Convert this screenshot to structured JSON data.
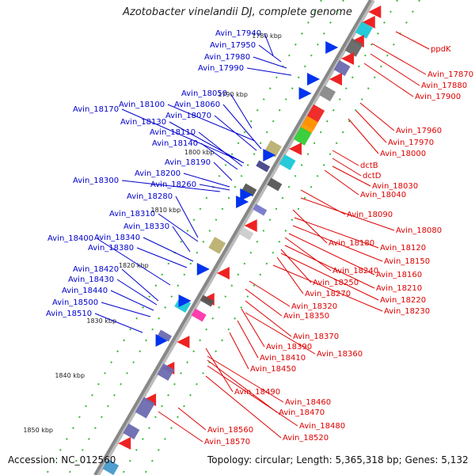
{
  "title": "Azotobacter vinelandii DJ, complete genome",
  "footer": {
    "accession": "Accession: NC_012560",
    "topology": "Topology: circular; Length: 5,365,318 bp; Genes: 5,132"
  },
  "colors": {
    "plus_strand_label": "#0000cc",
    "minus_strand_label": "#dd0000",
    "backbone": "#888888",
    "tick": "#00aa00"
  },
  "kbp_ticks": [
    "1780 kbp",
    "1790 kbp",
    "1800 kbp",
    "1810 kbp",
    "1820 kbp",
    "1830 kbp",
    "1840 kbp",
    "1850 kbp"
  ],
  "left_labels": [
    "Avin_17940",
    "Avin_17950",
    "Avin_17980",
    "Avin_17990",
    "Avin_18050",
    "Avin_18100",
    "Avin_18060",
    "Avin_18170",
    "Avin_18070",
    "Avin_18130",
    "Avin_18110",
    "Avin_18140",
    "Avin_18190",
    "Avin_18200",
    "Avin_18300",
    "Avin_18260",
    "Avin_18280",
    "Avin_18310",
    "Avin_18330",
    "Avin_18400",
    "Avin_18340",
    "Avin_18380",
    "Avin_18420",
    "Avin_18430",
    "Avin_18440",
    "Avin_18500",
    "Avin_18510"
  ],
  "right_labels": [
    "ppdK",
    "Avin_17870",
    "Avin_17880",
    "Avin_17900",
    "Avin_17960",
    "Avin_17970",
    "Avin_18000",
    "dctB",
    "dctD",
    "Avin_18030",
    "Avin_18040",
    "Avin_18090",
    "Avin_18080",
    "Avin_18180",
    "Avin_18120",
    "Avin_18150",
    "Avin_18160",
    "Avin_18240",
    "Avin_18210",
    "Avin_18250",
    "Avin_18220",
    "Avin_18270",
    "Avin_18230",
    "Avin_18320",
    "Avin_18350",
    "Avin_18370",
    "Avin_18390",
    "Avin_18360",
    "Avin_18410",
    "Avin_18450",
    "Avin_18490",
    "Avin_18460",
    "Avin_18470",
    "Avin_18480",
    "Avin_18560",
    "Avin_18520",
    "Avin_18570"
  ]
}
